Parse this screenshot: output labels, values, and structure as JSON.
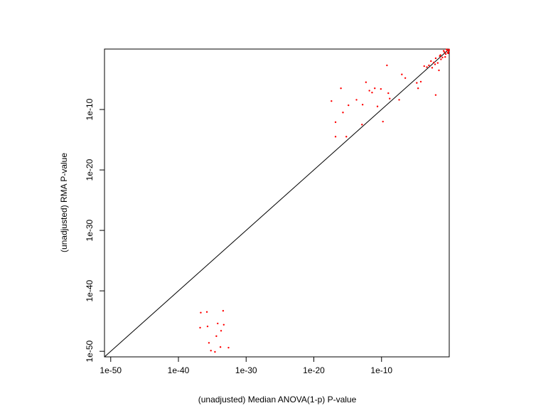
{
  "chart_data": {
    "type": "scatter",
    "x_label": "(unadjusted) Median ANOVA(1-p) P-value",
    "y_label": "(unadjusted) RMA P-value",
    "log_x": true,
    "log_y": true,
    "identity_line": true,
    "xlim": [
      1.2e-51,
      1
    ],
    "ylim": [
      1.2e-51,
      1
    ],
    "xticks": [
      1e-50,
      1e-40,
      1e-30,
      1e-20,
      1e-10
    ],
    "yticks": [
      1e-50,
      1e-40,
      1e-30,
      1e-20,
      1e-10
    ],
    "color": "#ff0000",
    "x": [
      2e-37,
      1.6e-36,
      4e-34,
      1.6e-37,
      2e-36,
      6.3e-35,
      2e-34,
      5e-34,
      3.2e-36,
      4e-35,
      1.6e-34,
      6.3e-36,
      2.5e-35,
      2.5e-33,
      1e-16,
      4e-18,
      1.6e-17,
      1.6e-17,
      2e-16,
      6.3e-16,
      1.3e-15,
      2e-14,
      1.6e-13,
      1.3e-13,
      5e-13,
      1.6e-12,
      4e-12,
      1e-11,
      2.5e-11,
      8e-11,
      1.6e-10,
      6.3e-10,
      1e-09,
      1.6e-09,
      4e-08,
      1e-07,
      3.2e-07,
      1.6e-05,
      2.5e-05,
      6.3e-05,
      0.01,
      0.001,
      0.003,
      0.01,
      0.02,
      0.05,
      0.1,
      0.2,
      0.3,
      0.5,
      0.7,
      0.9,
      0.0005,
      0.002,
      0.008,
      0.04,
      0.15,
      0.4,
      0.6,
      0.8,
      0.95,
      0.03,
      0.06,
      0.25,
      0.0002,
      0.005
    ],
    "y": [
      2.5e-44,
      3.2e-44,
      5e-44,
      8e-47,
      1.3e-46,
      4e-46,
      2.5e-47,
      2.5e-46,
      2.5e-49,
      3.2e-48,
      5e-50,
      1.3e-50,
      8e-51,
      4e-50,
      3.2e-07,
      2.5e-09,
      8e-13,
      3.2e-15,
      3.2e-11,
      3.2e-15,
      5e-10,
      4e-09,
      6.3e-10,
      3.2e-13,
      3.2e-06,
      1.3e-07,
      6.3e-08,
      3.2e-07,
      3.2e-10,
      2.5e-07,
      1e-12,
      0.002,
      5e-08,
      6.3e-09,
      4e-09,
      6.3e-05,
      1.6e-05,
      2.5e-06,
      3.2e-07,
      4e-06,
      2.5e-08,
      0.002,
      0.0008,
      0.03,
      0.005,
      0.1,
      0.04,
      0.3,
      0.15,
      0.6,
      0.2,
      0.8,
      0.001,
      0.01,
      0.003,
      0.07,
      0.5,
      0.9,
      0.25,
      0.4,
      0.7,
      0.0003,
      0.02,
      0.05,
      0.0015,
      0.006
    ]
  }
}
